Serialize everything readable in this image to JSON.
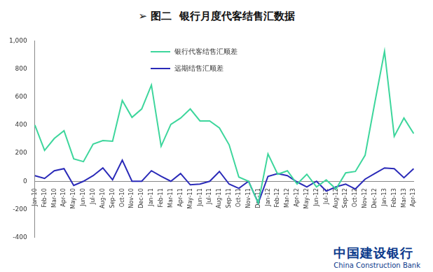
{
  "chart_data": {
    "type": "line",
    "title": "➢ 图二  银行月度代客结售汇数据",
    "categories": [
      "Jan-10",
      "Feb-10",
      "Mar-10",
      "Apr-10",
      "May-10",
      "Jun-10",
      "Jul-10",
      "Aug-10",
      "Sep-10",
      "Oct-10",
      "Nov-10",
      "Dec-10",
      "Jan-11",
      "Feb-11",
      "Mar-11",
      "Apr-11",
      "May-11",
      "Jun-11",
      "Jul-11",
      "Aug-11",
      "Sep-11",
      "Oct-11",
      "Nov-11",
      "Dec-11",
      "Jan-12",
      "Feb-12",
      "Mar-12",
      "Apr-12",
      "May-12",
      "Jun-12",
      "Jul-12",
      "Aug-12",
      "Sep-12",
      "Oct-12",
      "Nov-12",
      "Dec-12",
      "Jan-13",
      "Feb-13",
      "Mar-13",
      "Apr-13"
    ],
    "series": [
      {
        "name": "银行代客结售汇顺差",
        "color": "#3dd69c",
        "values": [
          400,
          220,
          305,
          360,
          160,
          140,
          265,
          290,
          285,
          575,
          455,
          515,
          685,
          250,
          405,
          450,
          515,
          430,
          430,
          380,
          260,
          30,
          0,
          -155,
          195,
          50,
          75,
          -20,
          50,
          -40,
          10,
          -55,
          60,
          70,
          185,
          560,
          925,
          320,
          450,
          340
        ]
      },
      {
        "name": "远期结售汇顺差",
        "color": "#2a2ab8",
        "values": [
          40,
          20,
          75,
          90,
          -30,
          0,
          40,
          95,
          10,
          150,
          0,
          0,
          75,
          35,
          0,
          55,
          -25,
          -20,
          0,
          70,
          -20,
          -50,
          0,
          -155,
          35,
          55,
          40,
          -5,
          -40,
          0,
          -70,
          -40,
          -20,
          -55,
          15,
          55,
          95,
          90,
          25,
          90
        ]
      }
    ],
    "ylim": [
      -400,
      1000
    ],
    "yticks": [
      -400,
      -200,
      0,
      200,
      400,
      600,
      800,
      1000
    ],
    "grid": false,
    "legend": "upper left",
    "annotations": [
      "中国建设银行",
      "China Construction Bank"
    ]
  }
}
